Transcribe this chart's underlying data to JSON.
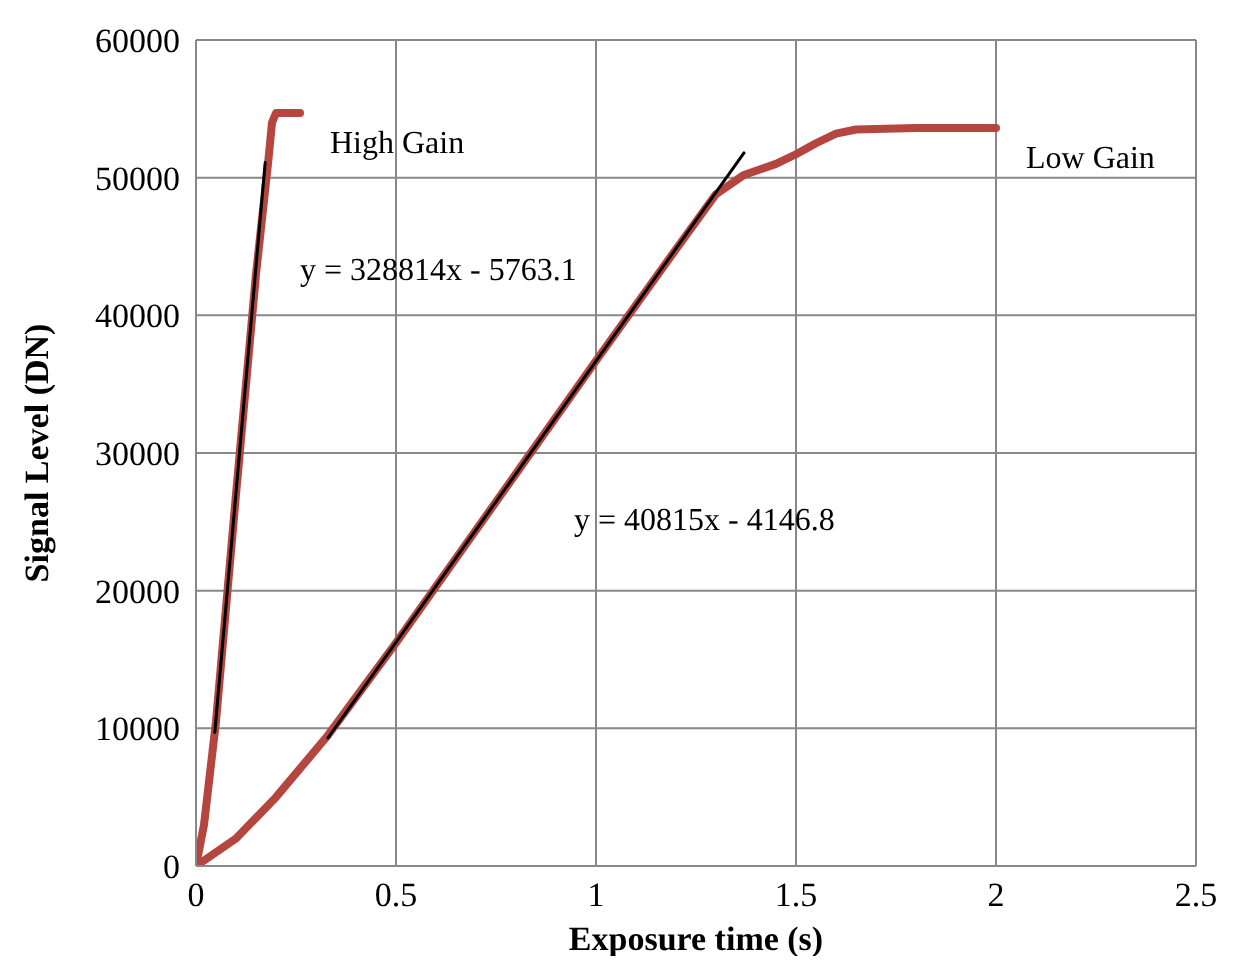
{
  "chart_data": {
    "type": "line",
    "xlabel": "Exposure time (s)",
    "ylabel": "Signal Level  (DN)",
    "xlim": [
      0,
      2.5
    ],
    "xticks": [
      0,
      0.5,
      1,
      1.5,
      2,
      2.5
    ],
    "ylim": [
      0,
      60000
    ],
    "yticks": [
      0,
      10000,
      20000,
      30000,
      40000,
      50000,
      60000
    ],
    "grid": true,
    "marker": "none",
    "line_style": "solid",
    "series": [
      {
        "name": "High Gain",
        "color": "#b5453f",
        "x": [
          0,
          0.02,
          0.05,
          0.1,
          0.15,
          0.18,
          0.19,
          0.2,
          0.22,
          0.26
        ],
        "values": [
          0,
          3000,
          10500,
          27000,
          43000,
          51000,
          54000,
          54700,
          54700,
          54700
        ]
      },
      {
        "name": "Low Gain",
        "color": "#b5453f",
        "x": [
          0,
          0.1,
          0.2,
          0.33,
          0.5,
          0.8,
          1.0,
          1.2,
          1.3,
          1.37,
          1.45,
          1.5,
          1.55,
          1.6,
          1.65,
          1.8,
          2.0
        ],
        "values": [
          0,
          2000,
          5000,
          9500,
          16200,
          28500,
          36700,
          44800,
          48800,
          50200,
          51000,
          51700,
          52500,
          53200,
          53500,
          53600,
          53600
        ]
      },
      {
        "type": "line",
        "color": "#000000",
        "x": [
          0.047,
          0.173
        ],
        "values": [
          9700,
          51100
        ]
      },
      {
        "type": "line",
        "color": "#000000",
        "x": [
          0.33,
          1.37
        ],
        "values": [
          9300,
          51800
        ]
      }
    ],
    "annotations": [
      "y = 328814x - 5763.1",
      "y = 40815x - 4146.8"
    ]
  }
}
